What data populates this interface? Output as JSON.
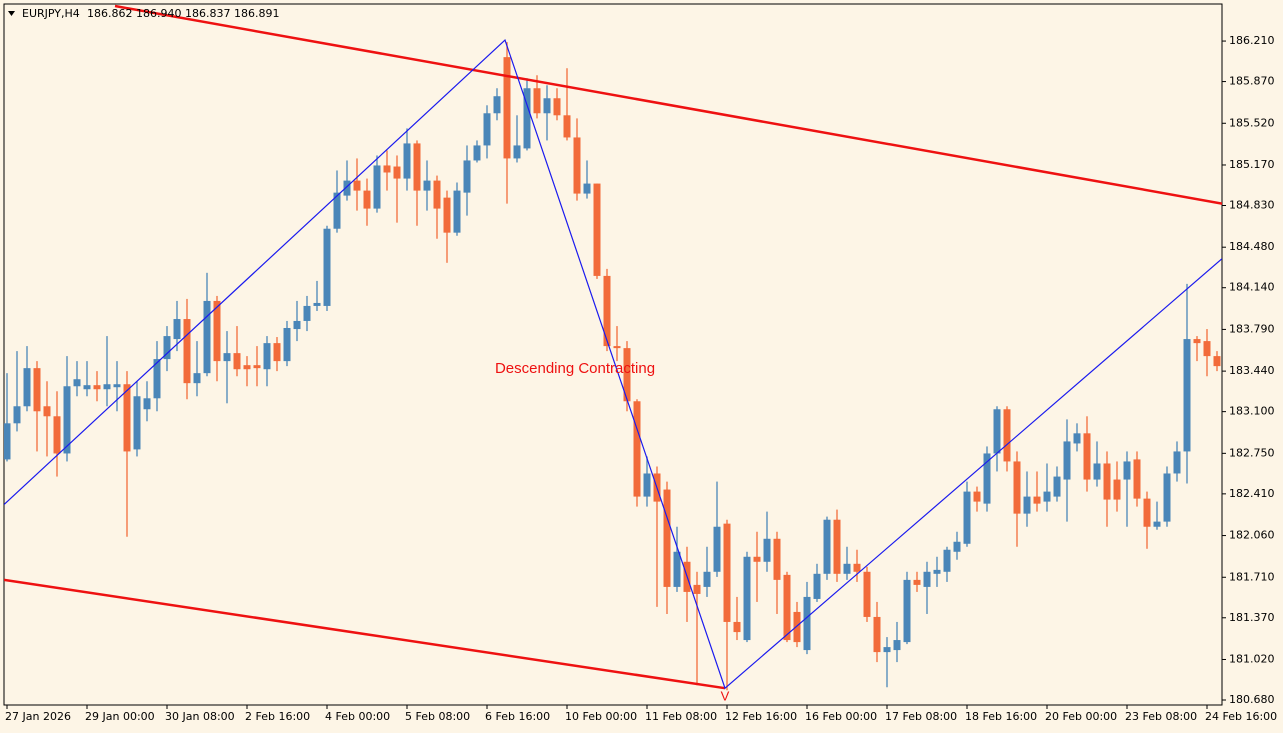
{
  "chart_data": {
    "type": "candlestick",
    "title": "EURJPY,H4",
    "quote": "186.862 186.940 186.837 186.891",
    "up_color": "#4a86b8",
    "down_color": "#f26b3a",
    "xlim": [
      -0.3,
      121.5
    ],
    "ylim": [
      180.638,
      186.521
    ],
    "yticks": [
      {
        "value": 186.21,
        "label": "186.210"
      },
      {
        "value": 185.87,
        "label": "185.870"
      },
      {
        "value": 185.52,
        "label": "185.520"
      },
      {
        "value": 185.17,
        "label": "185.170"
      },
      {
        "value": 184.83,
        "label": "184.830"
      },
      {
        "value": 184.48,
        "label": "184.480"
      },
      {
        "value": 184.14,
        "label": "184.140"
      },
      {
        "value": 183.79,
        "label": "183.790"
      },
      {
        "value": 183.44,
        "label": "183.440"
      },
      {
        "value": 183.1,
        "label": "183.100"
      },
      {
        "value": 182.75,
        "label": "182.750"
      },
      {
        "value": 182.41,
        "label": "182.410"
      },
      {
        "value": 182.06,
        "label": "182.060"
      },
      {
        "value": 181.71,
        "label": "181.710"
      },
      {
        "value": 181.37,
        "label": "181.370"
      },
      {
        "value": 181.02,
        "label": "181.020"
      },
      {
        "value": 180.68,
        "label": "180.680"
      }
    ],
    "xticks": [
      {
        "value": 0,
        "label": "27 Jan 2026"
      },
      {
        "value": 8,
        "label": "29 Jan 00:00"
      },
      {
        "value": 16,
        "label": "30 Jan 08:00"
      },
      {
        "value": 24,
        "label": "2 Feb 16:00"
      },
      {
        "value": 32,
        "label": "4 Feb 00:00"
      },
      {
        "value": 40,
        "label": "5 Feb 08:00"
      },
      {
        "value": 48,
        "label": "6 Feb 16:00"
      },
      {
        "value": 56,
        "label": "10 Feb 00:00"
      },
      {
        "value": 64,
        "label": "11 Feb 08:00"
      },
      {
        "value": 72,
        "label": "12 Feb 16:00"
      },
      {
        "value": 80,
        "label": "16 Feb 00:00"
      },
      {
        "value": 88,
        "label": "17 Feb 08:00"
      },
      {
        "value": 96,
        "label": "18 Feb 16:00"
      },
      {
        "value": 104,
        "label": "20 Feb 00:00"
      },
      {
        "value": 112,
        "label": "23 Feb 08:00"
      },
      {
        "value": 120,
        "label": "24 Feb 16:00"
      }
    ],
    "open": [
      182.699,
      183.002,
      183.145,
      183.465,
      183.145,
      183.061,
      182.749,
      183.313,
      183.288,
      183.322,
      183.288,
      183.305,
      183.33,
      182.783,
      183.12,
      183.212,
      183.541,
      183.709,
      183.877,
      183.339,
      183.423,
      184.029,
      183.524,
      183.591,
      183.49,
      183.49,
      183.456,
      183.675,
      183.524,
      183.793,
      183.861,
      183.987,
      183.987,
      184.635,
      184.913,
      185.039,
      184.955,
      184.804,
      185.166,
      185.157,
      185.056,
      185.351,
      184.955,
      185.039,
      184.896,
      184.602,
      184.938,
      185.208,
      185.334,
      185.604,
      186.075,
      185.225,
      185.309,
      185.814,
      185.604,
      185.73,
      185.587,
      185.401,
      184.93,
      185.014,
      184.239,
      183.65,
      183.633,
      183.187,
      182.387,
      182.581,
      182.446,
      181.629,
      181.84,
      181.646,
      181.629,
      181.756,
      182.16,
      181.335,
      181.183,
      181.882,
      181.84,
      182.033,
      181.73,
      181.419,
      181.099,
      181.528,
      181.739,
      182.193,
      181.739,
      181.823,
      181.756,
      181.377,
      181.082,
      181.099,
      181.166,
      181.688,
      181.629,
      181.739,
      181.756,
      181.924,
      181.991,
      182.429,
      182.328,
      182.749,
      183.12,
      182.682,
      182.244,
      182.387,
      182.345,
      182.387,
      182.53,
      182.833,
      182.918,
      182.53,
      182.665,
      182.53,
      182.53,
      182.699,
      182.37,
      182.134,
      182.177,
      182.581,
      182.766,
      183.709,
      183.692,
      183.566
    ],
    "high": [
      183.423,
      183.608,
      183.65,
      183.524,
      183.355,
      183.271,
      183.566,
      183.524,
      183.524,
      183.44,
      183.734,
      183.524,
      183.44,
      183.355,
      183.355,
      183.692,
      183.818,
      184.029,
      184.046,
      183.692,
      184.265,
      184.071,
      183.776,
      183.818,
      183.566,
      183.65,
      183.734,
      183.726,
      183.861,
      184.029,
      184.071,
      184.197,
      184.66,
      185.124,
      185.208,
      185.225,
      185.056,
      185.25,
      185.292,
      185.25,
      185.477,
      185.376,
      185.208,
      185.081,
      184.955,
      185.023,
      185.334,
      185.376,
      185.671,
      185.814,
      186.201,
      185.587,
      185.898,
      185.923,
      185.839,
      185.814,
      185.982,
      185.561,
      185.208,
      185.014,
      184.298,
      183.818,
      183.692,
      183.204,
      182.724,
      182.64,
      182.513,
      182.134,
      181.966,
      181.756,
      181.966,
      182.513,
      182.193,
      181.545,
      181.924,
      182.092,
      182.261,
      182.092,
      181.756,
      181.503,
      181.671,
      181.823,
      182.219,
      182.278,
      181.966,
      181.941,
      181.798,
      181.503,
      181.208,
      181.335,
      181.756,
      181.756,
      181.84,
      181.882,
      181.966,
      182.092,
      182.513,
      182.471,
      182.808,
      183.145,
      183.145,
      182.766,
      182.598,
      182.598,
      182.665,
      182.64,
      183.035,
      183.002,
      183.061,
      182.85,
      182.766,
      182.682,
      182.766,
      182.766,
      182.429,
      182.345,
      182.64,
      182.85,
      184.172,
      183.734,
      183.793,
      183.608
    ],
    "low": [
      182.682,
      182.934,
      183.103,
      182.766,
      182.724,
      182.555,
      182.682,
      183.229,
      183.229,
      183.187,
      183.145,
      183.103,
      182.05,
      182.724,
      183.019,
      183.103,
      183.44,
      183.608,
      183.204,
      183.229,
      183.397,
      183.355,
      183.17,
      183.397,
      183.313,
      183.313,
      183.313,
      183.44,
      183.482,
      183.692,
      183.776,
      183.945,
      183.945,
      184.602,
      184.871,
      184.787,
      184.66,
      184.77,
      184.955,
      184.686,
      184.955,
      184.66,
      184.787,
      184.551,
      184.349,
      184.576,
      184.745,
      185.191,
      185.225,
      185.545,
      184.846,
      185.191,
      185.292,
      185.561,
      185.376,
      185.545,
      185.376,
      184.871,
      184.888,
      184.214,
      183.608,
      183.524,
      183.103,
      182.303,
      182.303,
      181.461,
      181.402,
      181.587,
      181.335,
      180.804,
      181.545,
      181.713,
      180.762,
      181.183,
      181.166,
      181.503,
      181.756,
      181.402,
      181.166,
      181.124,
      181.065,
      181.503,
      181.688,
      181.671,
      181.688,
      181.671,
      181.335,
      180.998,
      180.787,
      180.998,
      181.149,
      181.587,
      181.402,
      181.629,
      181.671,
      181.857,
      181.966,
      182.261,
      182.261,
      182.598,
      182.598,
      181.966,
      182.134,
      182.261,
      182.261,
      182.345,
      182.177,
      182.766,
      182.429,
      182.471,
      182.134,
      182.261,
      182.134,
      182.303,
      181.949,
      182.109,
      182.134,
      182.513,
      182.497,
      183.524,
      183.397,
      183.44
    ],
    "close": [
      183.002,
      183.145,
      183.465,
      183.103,
      183.061,
      182.749,
      183.313,
      183.372,
      183.322,
      183.288,
      183.33,
      183.33,
      182.766,
      183.229,
      183.212,
      183.541,
      183.734,
      183.877,
      183.339,
      183.423,
      184.029,
      183.524,
      183.591,
      183.456,
      183.456,
      183.465,
      183.675,
      183.524,
      183.802,
      183.861,
      183.987,
      184.012,
      184.635,
      184.938,
      185.039,
      184.955,
      184.804,
      185.166,
      185.107,
      185.056,
      185.351,
      184.955,
      185.039,
      184.804,
      184.602,
      184.955,
      185.208,
      185.334,
      185.604,
      185.747,
      185.225,
      185.334,
      185.814,
      185.604,
      185.73,
      185.587,
      185.401,
      184.93,
      185.014,
      184.239,
      183.65,
      183.633,
      183.187,
      182.387,
      182.581,
      182.345,
      181.629,
      181.924,
      181.587,
      181.57,
      181.756,
      182.134,
      181.335,
      181.25,
      181.882,
      181.84,
      182.033,
      181.688,
      181.183,
      181.166,
      181.545,
      181.739,
      182.193,
      181.739,
      181.823,
      181.756,
      181.377,
      181.082,
      181.124,
      181.183,
      181.688,
      181.646,
      181.756,
      181.772,
      181.941,
      182.008,
      182.429,
      182.345,
      182.749,
      183.12,
      182.682,
      182.244,
      182.387,
      182.328,
      182.429,
      182.555,
      182.85,
      182.918,
      182.53,
      182.665,
      182.362,
      182.362,
      182.682,
      182.37,
      182.134,
      182.177,
      182.581,
      182.766,
      183.709,
      183.675,
      183.566,
      183.482
    ],
    "trendlines": [
      {
        "color": "#ee1111",
        "width": 2.5,
        "x": [
          10.8,
          121.5
        ],
        "y": [
          186.504,
          184.846
        ]
      },
      {
        "color": "#ee1111",
        "width": 2.5,
        "x": [
          -0.3,
          71.8
        ],
        "y": [
          181.688,
          180.779
        ]
      },
      {
        "color": "#1a1aee",
        "width": 1.2,
        "x": [
          -0.3,
          49.8,
          71.8,
          121.5
        ],
        "y": [
          182.32,
          186.218,
          180.779,
          184.383
        ]
      }
    ],
    "annotations": [
      {
        "text": "Descending Contracting",
        "x": 56.8,
        "y": 183.457,
        "color": "#ee1111",
        "size": 15
      },
      {
        "text": "V",
        "x": 71.8,
        "y": 180.705,
        "color": "#ee1111",
        "size": 13
      }
    ]
  }
}
